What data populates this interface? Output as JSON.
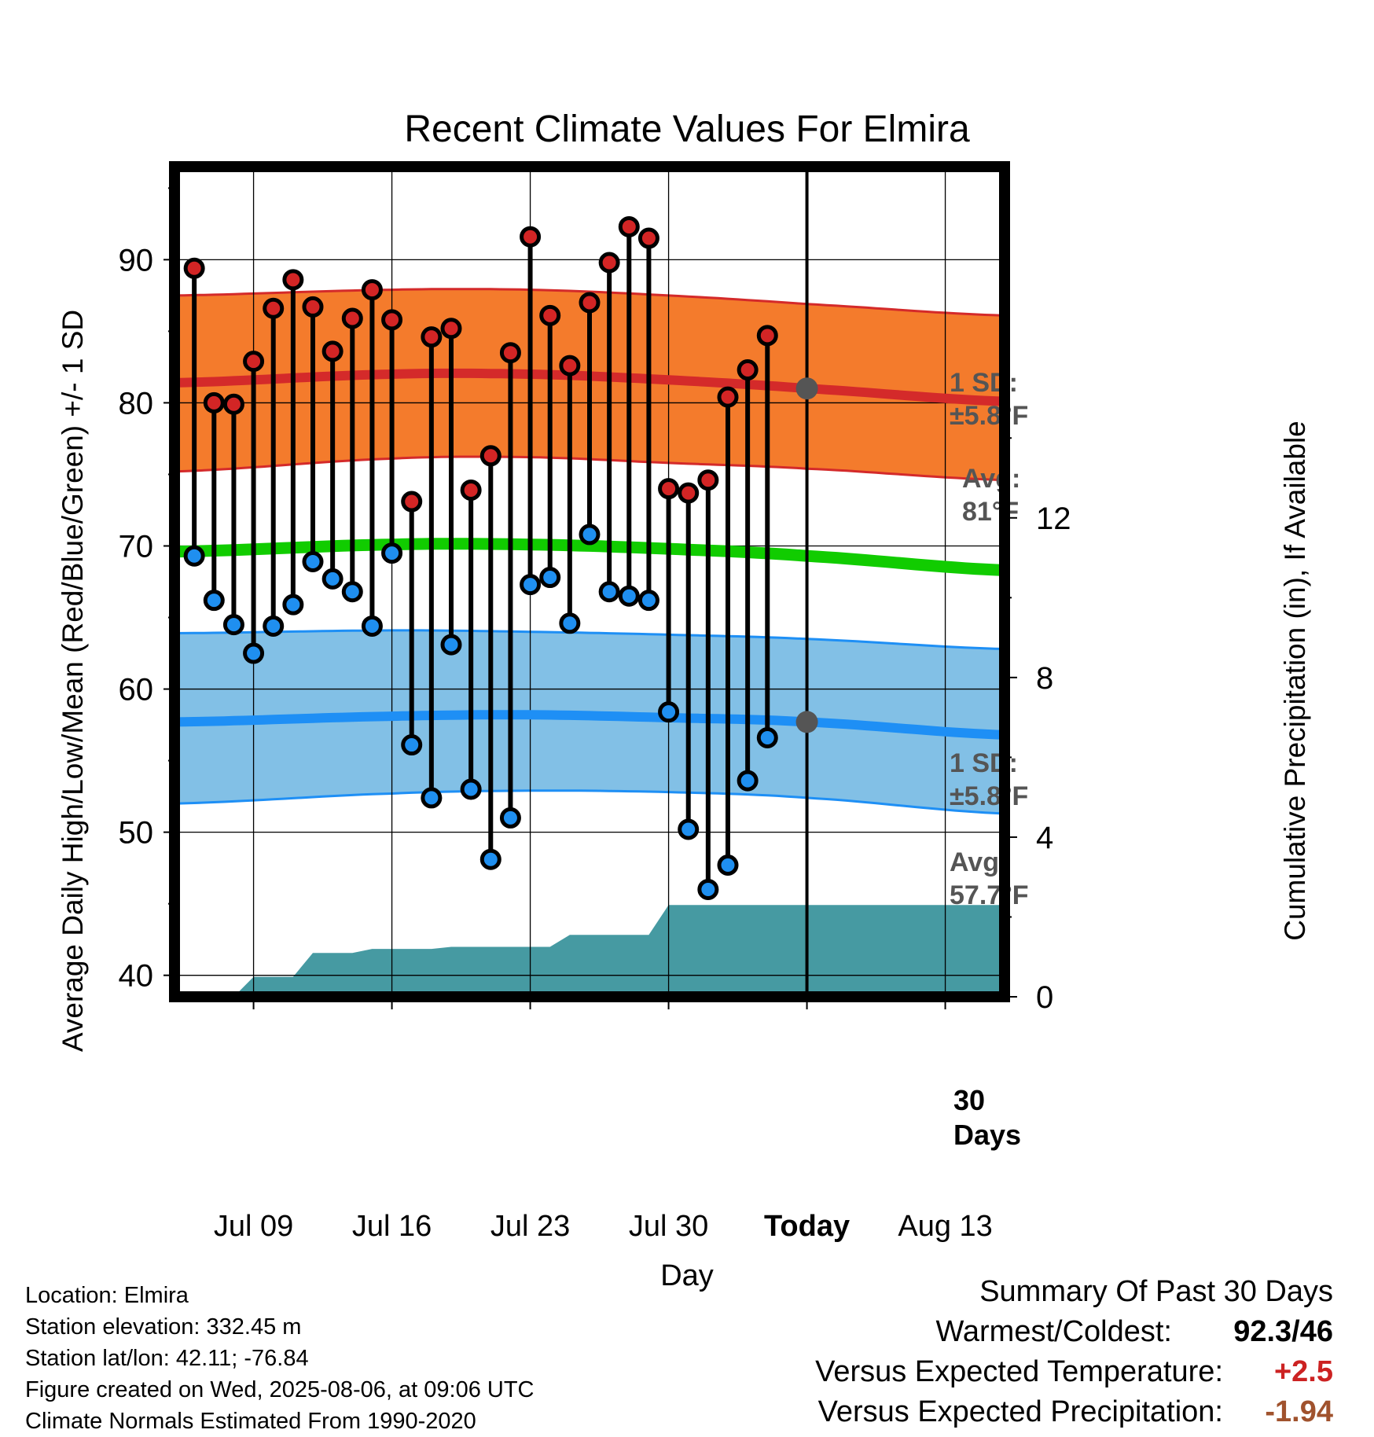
{
  "chart_data": {
    "type": "line",
    "title": "Recent Climate Values For Elmira",
    "xlabel": "Day",
    "ylabel": "Average Daily High/Low/Mean (Red/Blue/Green) +/- 1 SD",
    "ylabel_right": "Cumulative Precipitation (in), If Available",
    "ylim": [
      38.5,
      96.5
    ],
    "ylim_right": [
      0,
      20.8
    ],
    "yticks": [
      40,
      50,
      60,
      70,
      80,
      90
    ],
    "yticks_right": [
      0,
      4,
      8,
      12
    ],
    "x_range": [
      "2025-07-05",
      "2025-08-16"
    ],
    "x_ticks": [
      {
        "date": "2025-07-09",
        "label": "Jul 09"
      },
      {
        "date": "2025-07-16",
        "label": "Jul 16"
      },
      {
        "date": "2025-07-23",
        "label": "Jul 23"
      },
      {
        "date": "2025-07-30",
        "label": "Jul 30"
      },
      {
        "date": "2025-08-06",
        "label": "Today"
      },
      {
        "date": "2025-08-13",
        "label": "Aug 13"
      }
    ],
    "today": "2025-08-06",
    "grid": true,
    "normals": {
      "dates": [
        "2025-07-05",
        "2025-07-16",
        "2025-07-23",
        "2025-07-30",
        "2025-08-06",
        "2025-08-16"
      ],
      "high_avg": [
        81.4,
        82.0,
        82.0,
        81.6,
        81.0,
        80.1
      ],
      "high_upper": [
        87.5,
        87.9,
        87.9,
        87.5,
        86.9,
        86.1
      ],
      "high_lower": [
        75.2,
        76.1,
        76.2,
        75.8,
        75.4,
        74.6
      ],
      "low_avg": [
        57.7,
        58.1,
        58.2,
        58.0,
        57.7,
        56.8
      ],
      "low_upper": [
        63.9,
        64.1,
        64.0,
        63.8,
        63.5,
        62.8
      ],
      "low_lower": [
        52.0,
        52.7,
        52.9,
        52.8,
        52.4,
        51.3
      ],
      "mean_avg": [
        69.6,
        70.1,
        70.1,
        69.8,
        69.3,
        68.3
      ]
    },
    "normal_labels": {
      "high_sd_title": "1 SD:",
      "high_sd_value": "±5.8°F",
      "high_avg_title": "Avg:",
      "high_avg_value": "81°F",
      "low_sd_title": "1 SD:",
      "low_sd_value": "±5.8°F",
      "low_avg_title": "Avg:",
      "low_avg_value": "57.7°F"
    },
    "days": [
      {
        "date": "2025-07-06",
        "high": 89.4,
        "low": 69.3
      },
      {
        "date": "2025-07-07",
        "high": 80.0,
        "low": 66.2
      },
      {
        "date": "2025-07-08",
        "high": 79.9,
        "low": 64.5
      },
      {
        "date": "2025-07-09",
        "high": 82.9,
        "low": 62.5
      },
      {
        "date": "2025-07-10",
        "high": 86.6,
        "low": 64.4
      },
      {
        "date": "2025-07-11",
        "high": 88.6,
        "low": 65.9
      },
      {
        "date": "2025-07-12",
        "high": 86.7,
        "low": 68.9
      },
      {
        "date": "2025-07-13",
        "high": 83.6,
        "low": 67.7
      },
      {
        "date": "2025-07-14",
        "high": 85.9,
        "low": 66.8
      },
      {
        "date": "2025-07-15",
        "high": 87.9,
        "low": 64.4
      },
      {
        "date": "2025-07-16",
        "high": 85.8,
        "low": 69.5
      },
      {
        "date": "2025-07-17",
        "high": 73.1,
        "low": 56.1
      },
      {
        "date": "2025-07-18",
        "high": 84.6,
        "low": 52.4
      },
      {
        "date": "2025-07-19",
        "high": 85.2,
        "low": 63.1
      },
      {
        "date": "2025-07-20",
        "high": 73.9,
        "low": 53.0
      },
      {
        "date": "2025-07-21",
        "high": 76.3,
        "low": 48.1
      },
      {
        "date": "2025-07-22",
        "high": 83.5,
        "low": 51.0
      },
      {
        "date": "2025-07-23",
        "high": 91.6,
        "low": 67.3
      },
      {
        "date": "2025-07-24",
        "high": 86.1,
        "low": 67.8
      },
      {
        "date": "2025-07-25",
        "high": 82.6,
        "low": 64.6
      },
      {
        "date": "2025-07-26",
        "high": 87.0,
        "low": 70.8
      },
      {
        "date": "2025-07-27",
        "high": 89.8,
        "low": 66.8
      },
      {
        "date": "2025-07-28",
        "high": 92.3,
        "low": 66.5
      },
      {
        "date": "2025-07-29",
        "high": 91.5,
        "low": 66.2
      },
      {
        "date": "2025-07-30",
        "high": 74.0,
        "low": 58.4
      },
      {
        "date": "2025-07-31",
        "high": 73.7,
        "low": 50.2
      },
      {
        "date": "2025-08-01",
        "high": 74.6,
        "low": 46.0
      },
      {
        "date": "2025-08-02",
        "high": 80.4,
        "low": 47.7
      },
      {
        "date": "2025-08-03",
        "high": 82.3,
        "low": 53.6
      },
      {
        "date": "2025-08-04",
        "high": 84.7,
        "low": 56.6
      }
    ],
    "precip_cumulative": [
      {
        "date": "2025-07-08",
        "value": 0.0
      },
      {
        "date": "2025-07-09",
        "value": 0.5
      },
      {
        "date": "2025-07-11",
        "value": 0.5
      },
      {
        "date": "2025-07-12",
        "value": 1.1
      },
      {
        "date": "2025-07-14",
        "value": 1.1
      },
      {
        "date": "2025-07-15",
        "value": 1.2
      },
      {
        "date": "2025-07-18",
        "value": 1.2
      },
      {
        "date": "2025-07-19",
        "value": 1.25
      },
      {
        "date": "2025-07-24",
        "value": 1.25
      },
      {
        "date": "2025-07-25",
        "value": 1.55
      },
      {
        "date": "2025-07-29",
        "value": 1.55
      },
      {
        "date": "2025-07-30",
        "value": 2.3
      },
      {
        "date": "2025-08-16",
        "value": 2.3
      }
    ],
    "precip_label": [
      "30",
      "Days"
    ],
    "colors": {
      "high_band": "#f47b2c",
      "high_line": "#d42a2a",
      "low_band": "#82c0e6",
      "low_line": "#1e8ff5",
      "mean_line": "#11cc00",
      "precip": "#469aa2",
      "high_marker": "#d32525",
      "low_marker": "#1f8ff0",
      "avg_dot": "#555555",
      "label_gray": "#555555"
    }
  },
  "info": {
    "location": "Location: Elmira",
    "elevation": "Station elevation: 332.45 m",
    "latlon": "Station lat/lon: 42.11; -76.84",
    "created": "Figure created on Wed, 2025-08-06, at 09:06 UTC",
    "normals": "Climate Normals Estimated From 1990-2020"
  },
  "summary": {
    "title": "Summary Of Past 30 Days",
    "warm_cold_label": "Warmest/Coldest:",
    "warm_cold_value": "92.3/46",
    "temp_label": "Versus Expected Temperature:",
    "temp_value": "+2.5",
    "temp_color": "#cc2222",
    "precip_label": "Versus Expected Precipitation:",
    "precip_value": "-1.94",
    "precip_color": "#a0522d"
  }
}
